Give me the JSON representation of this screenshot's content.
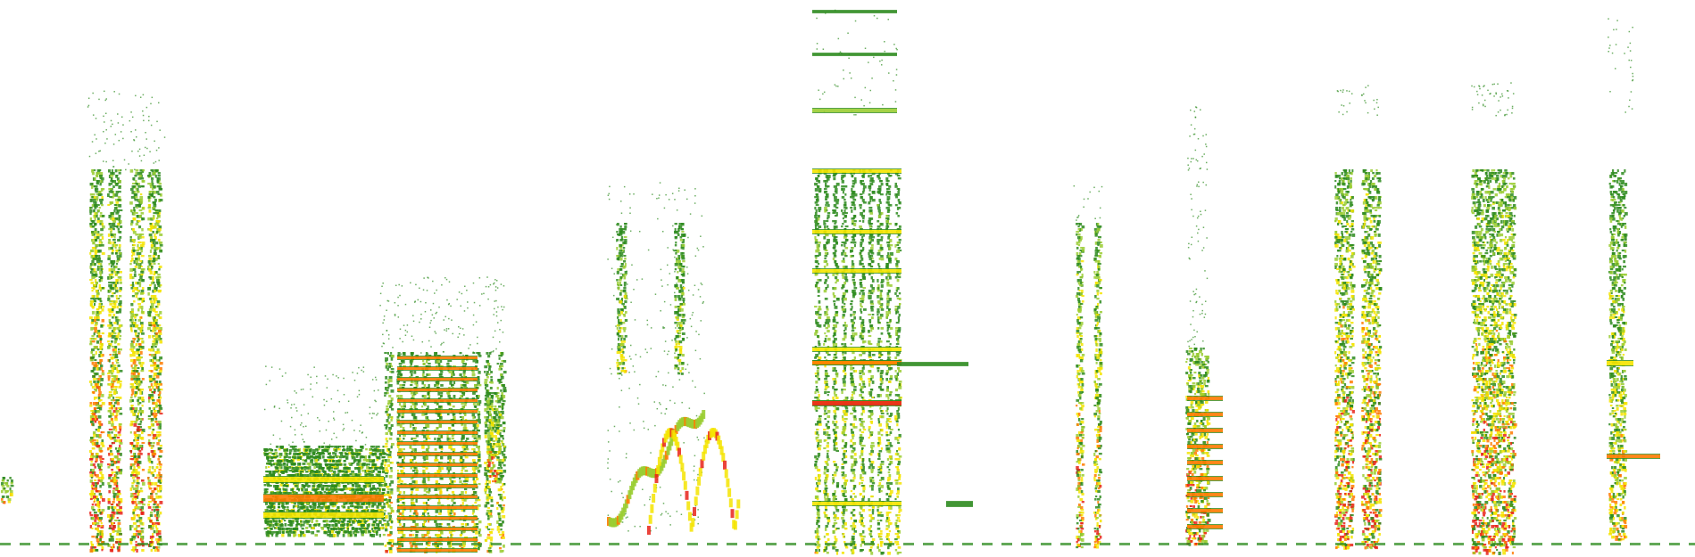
{
  "spectrogram": {
    "palette": {
      "background": "#ffffff",
      "low": "#2e8b1f",
      "mid": "#9acd32",
      "high": "#f5e400",
      "peak": "#ff7a00",
      "max": "#e8231a"
    },
    "noise_floor_line": true,
    "call_count": 12
  }
}
